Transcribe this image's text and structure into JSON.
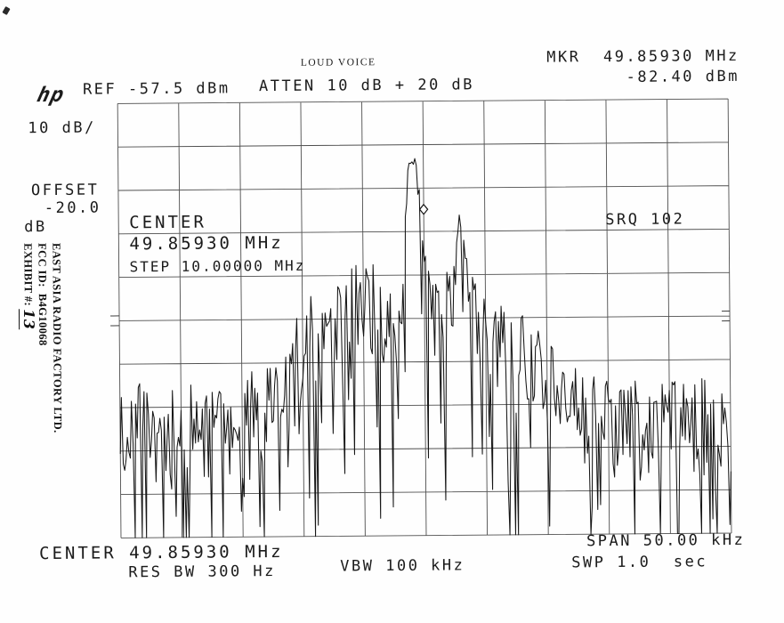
{
  "page": {
    "background": "#fefefe",
    "ink": "#1b1b1b"
  },
  "annotations": {
    "typed_label": "LOUD VOICE",
    "exhibit": {
      "company_line": "EAST ASIA RADIO FACTORY LTD.",
      "fcc_id_line": "FCC ID:  B4G10068",
      "exhibit_line": "EXHIBIT #: ",
      "exhibit_number": "13"
    }
  },
  "analyzer": {
    "logo": "hp",
    "ref_label": "REF -57.5 dBm",
    "atten_label": "ATTEN 10 dB + 20 dB",
    "scale_label": "10 dB/",
    "offset": {
      "line1": "OFFSET",
      "line2": " -20.0",
      "line3": "dB"
    },
    "marker_readout": {
      "line1": "MKR  49.85930 MHz",
      "line2": "-82.40 dBm"
    },
    "center_block": {
      "line1": "CENTER",
      "line2": "49.85930 MHz",
      "line3": "STEP 10.00000 MHz"
    },
    "srq_label": "SRQ 102",
    "bottom": {
      "center": "CENTER 49.85930 MHz",
      "res_bw": "RES BW 300 Hz",
      "vbw": "VBW 100 kHz",
      "span": "SPAN 50.00 kHz",
      "sweep": "SWP 1.0  sec"
    }
  },
  "chart_data": {
    "type": "line",
    "title": "LOUD VOICE",
    "x_axis": {
      "center_mhz": 49.8593,
      "span_khz": 50.0,
      "step_mhz": 10.0,
      "divisions": 10
    },
    "y_axis": {
      "ref_dbm": -57.5,
      "db_per_div": 10,
      "divisions": 10,
      "offset_db": -20.0
    },
    "res_bw_hz": 300,
    "vbw_khz": 100,
    "sweep_s": 1.0,
    "atten_db": "10 + 20",
    "marker": {
      "freq_mhz": 49.8593,
      "level_dbm": -82.4
    },
    "envelope_dbm": [
      {
        "f": 0.0,
        "v": -124.5
      },
      {
        "f": 0.03,
        "v": -123.0
      },
      {
        "f": 0.06,
        "v": -125.0
      },
      {
        "f": 0.09,
        "v": -123.5
      },
      {
        "f": 0.12,
        "v": -125.0
      },
      {
        "f": 0.15,
        "v": -123.5
      },
      {
        "f": 0.18,
        "v": -124.5
      },
      {
        "f": 0.205,
        "v": -122.5
      },
      {
        "f": 0.225,
        "v": -121.0
      },
      {
        "f": 0.245,
        "v": -117.5
      },
      {
        "f": 0.265,
        "v": -113.5
      },
      {
        "f": 0.285,
        "v": -110.0
      },
      {
        "f": 0.305,
        "v": -106.0
      },
      {
        "f": 0.322,
        "v": -101.5
      },
      {
        "f": 0.338,
        "v": -97.5
      },
      {
        "f": 0.352,
        "v": -100.5
      },
      {
        "f": 0.368,
        "v": -96.5
      },
      {
        "f": 0.383,
        "v": -93.5
      },
      {
        "f": 0.395,
        "v": -96.0
      },
      {
        "f": 0.408,
        "v": -94.0
      },
      {
        "f": 0.42,
        "v": -96.5
      },
      {
        "f": 0.433,
        "v": -99.5
      },
      {
        "f": 0.447,
        "v": -103.0
      },
      {
        "f": 0.46,
        "v": -98.0
      },
      {
        "f": 0.468,
        "v": -88.0,
        "s": 0.35
      },
      {
        "f": 0.474,
        "v": -71.0,
        "s": 0.8
      },
      {
        "f": 0.478,
        "v": -69.2,
        "s": 0.88
      },
      {
        "f": 0.483,
        "v": -71.5,
        "s": 0.85
      },
      {
        "f": 0.487,
        "v": -69.0,
        "s": 0.88
      },
      {
        "f": 0.492,
        "v": -76.0,
        "s": 0.7
      },
      {
        "f": 0.497,
        "v": -86.0,
        "s": 0.35
      },
      {
        "f": 0.505,
        "v": -95.0
      },
      {
        "f": 0.518,
        "v": -99.0
      },
      {
        "f": 0.532,
        "v": -97.0
      },
      {
        "f": 0.545,
        "v": -99.5
      },
      {
        "f": 0.552,
        "v": -90.0,
        "s": 0.4
      },
      {
        "f": 0.558,
        "v": -82.8,
        "s": 0.7
      },
      {
        "f": 0.564,
        "v": -86.0,
        "s": 0.5
      },
      {
        "f": 0.572,
        "v": -96.0
      },
      {
        "f": 0.585,
        "v": -99.5
      },
      {
        "f": 0.6,
        "v": -101.0
      },
      {
        "f": 0.62,
        "v": -103.5
      },
      {
        "f": 0.64,
        "v": -106.0
      },
      {
        "f": 0.66,
        "v": -108.5
      },
      {
        "f": 0.682,
        "v": -111.0
      },
      {
        "f": 0.705,
        "v": -114.5
      },
      {
        "f": 0.728,
        "v": -118.0
      },
      {
        "f": 0.752,
        "v": -121.0
      },
      {
        "f": 0.78,
        "v": -123.0
      },
      {
        "f": 0.81,
        "v": -124.0
      },
      {
        "f": 0.84,
        "v": -123.0
      },
      {
        "f": 0.87,
        "v": -124.5
      },
      {
        "f": 0.9,
        "v": -123.0
      },
      {
        "f": 0.93,
        "v": -124.5
      },
      {
        "f": 0.96,
        "v": -123.5
      },
      {
        "f": 1.0,
        "v": -124.5
      }
    ],
    "noise": {
      "seed": 11,
      "jitter_db": 3,
      "points": 430
    },
    "grid_color": "#3f3f3f",
    "trace_color": "#161616"
  }
}
